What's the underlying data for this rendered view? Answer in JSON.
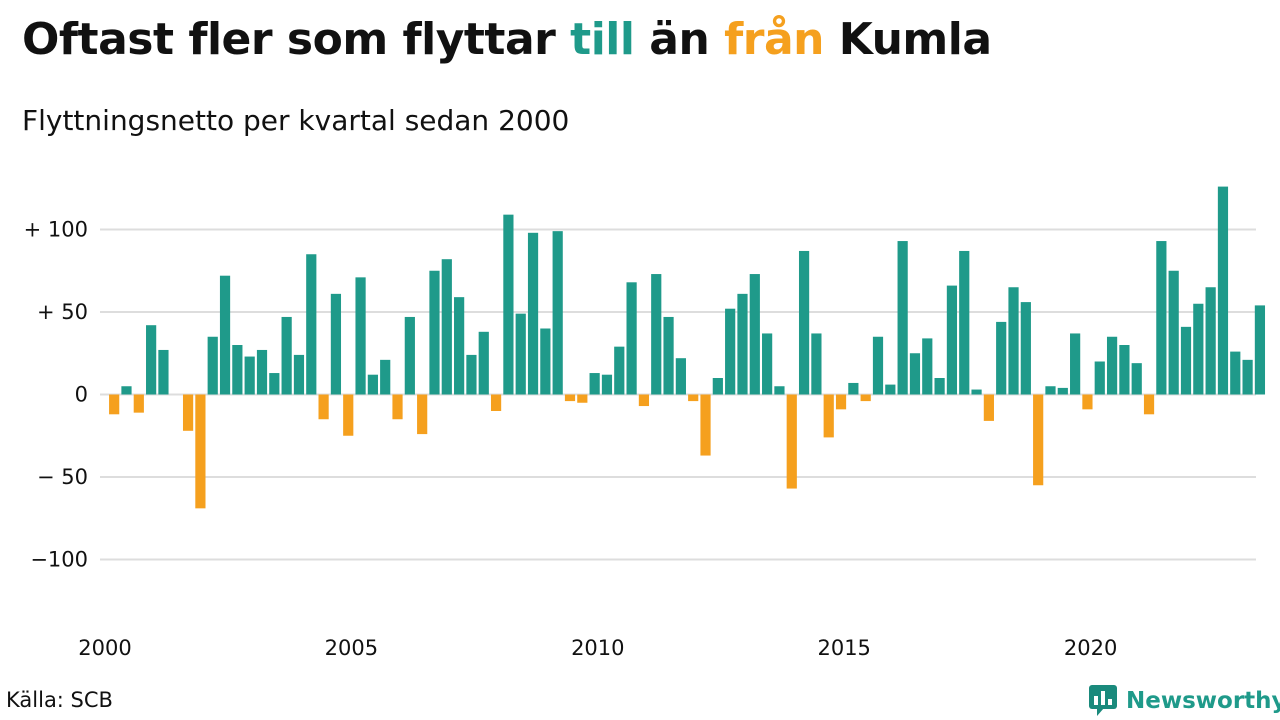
{
  "header": {
    "title_parts": [
      {
        "text": "Oftast fler som flyttar "
      },
      {
        "text": "till"
      },
      {
        "text": " än "
      },
      {
        "text": "från"
      },
      {
        "text": " Kumla"
      }
    ],
    "subtitle": "Flyttningsnetto per kvartal sedan 2000"
  },
  "footer": {
    "source": "Källa: SCB",
    "brand": "Newsworthy",
    "brand_icon": "bar-chart-speech-bubble-icon"
  },
  "colors": {
    "positive": "#1f9a8a",
    "negative": "#f5a01e",
    "grid": "#dddddd",
    "text": "#111111"
  },
  "chart_data": {
    "type": "bar",
    "title": "Oftast fler som flyttar till än från Kumla",
    "subtitle": "Flyttningsnetto per kvartal sedan 2000",
    "xlabel": "",
    "ylabel": "",
    "ylim": [
      -130,
      130
    ],
    "grid": true,
    "legend": "none",
    "y_ticks": [
      {
        "value": 100,
        "label": "+ 100"
      },
      {
        "value": 50,
        "label": "+  50"
      },
      {
        "value": 0,
        "label": "0"
      },
      {
        "value": -50,
        "label": "− 50"
      },
      {
        "value": -100,
        "label": "−100"
      }
    ],
    "x_ticks": [
      {
        "year": 2000,
        "label": "2000"
      },
      {
        "year": 2005,
        "label": "2005"
      },
      {
        "year": 2010,
        "label": "2010"
      },
      {
        "year": 2015,
        "label": "2015"
      },
      {
        "year": 2020,
        "label": "2020"
      }
    ],
    "categories": [
      "2000K1",
      "2000K2",
      "2000K3",
      "2000K4",
      "2001K1",
      "2001K2",
      "2001K3",
      "2001K4",
      "2002K1",
      "2002K2",
      "2002K3",
      "2002K4",
      "2003K1",
      "2003K2",
      "2003K3",
      "2003K4",
      "2004K1",
      "2004K2",
      "2004K3",
      "2004K4",
      "2005K1",
      "2005K2",
      "2005K3",
      "2005K4",
      "2006K1",
      "2006K2",
      "2006K3",
      "2006K4",
      "2007K1",
      "2007K2",
      "2007K3",
      "2007K4",
      "2008K1",
      "2008K2",
      "2008K3",
      "2008K4",
      "2009K1",
      "2009K2",
      "2009K3",
      "2009K4",
      "2010K1",
      "2010K2",
      "2010K3",
      "2010K4",
      "2011K1",
      "2011K2",
      "2011K3",
      "2011K4",
      "2012K1",
      "2012K2",
      "2012K3",
      "2012K4",
      "2013K1",
      "2013K2",
      "2013K3",
      "2013K4",
      "2014K1",
      "2014K2",
      "2014K3",
      "2014K4",
      "2015K1",
      "2015K2",
      "2015K3",
      "2015K4",
      "2016K1",
      "2016K2",
      "2016K3",
      "2016K4",
      "2017K1",
      "2017K2",
      "2017K3",
      "2017K4",
      "2018K1",
      "2018K2",
      "2018K3",
      "2018K4",
      "2019K1",
      "2019K2",
      "2019K3",
      "2019K4",
      "2020K1",
      "2020K2",
      "2020K3",
      "2020K4",
      "2021K1",
      "2021K2",
      "2021K3",
      "2021K4",
      "2022K1",
      "2022K2",
      "2022K3",
      "2022K4",
      "2023K1",
      "2023K2"
    ],
    "values": [
      -12,
      5,
      -11,
      42,
      27,
      0,
      -22,
      -69,
      35,
      72,
      30,
      23,
      27,
      13,
      47,
      24,
      85,
      -15,
      61,
      -25,
      71,
      12,
      21,
      -15,
      47,
      -24,
      75,
      82,
      59,
      24,
      38,
      -10,
      109,
      49,
      98,
      40,
      99,
      -4,
      -5,
      13,
      12,
      29,
      68,
      -7,
      73,
      47,
      22,
      -4,
      -37,
      10,
      52,
      61,
      73,
      37,
      5,
      -57,
      87,
      37,
      -26,
      -9,
      7,
      -4,
      35,
      6,
      93,
      25,
      34,
      10,
      66,
      87,
      3,
      -16,
      44,
      65,
      56,
      -55,
      5,
      4,
      37,
      -9,
      20,
      35,
      30,
      19,
      -12,
      93,
      75,
      41,
      55,
      65,
      126,
      26,
      21,
      54
    ]
  }
}
